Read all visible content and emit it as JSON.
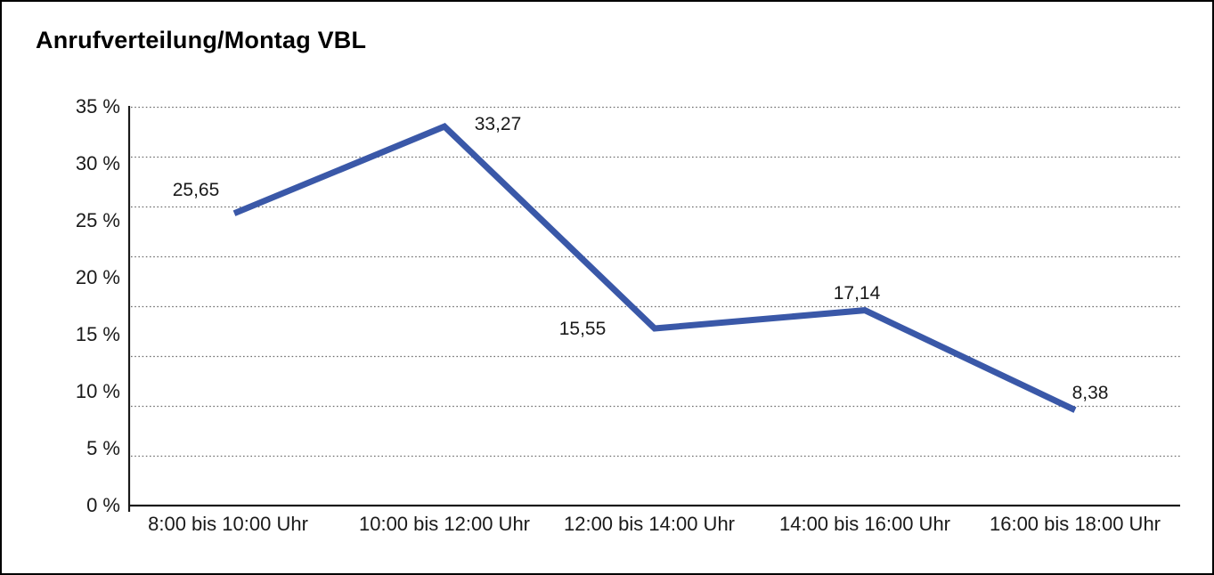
{
  "title": "Anrufverteilung/Montag VBL",
  "chart_data": {
    "type": "line",
    "title": "Anrufverteilung/Montag VBL",
    "categories": [
      "8:00 bis 10:00 Uhr",
      "10:00 bis 12:00 Uhr",
      "12:00 bis 14:00 Uhr",
      "14:00 bis 16:00 Uhr",
      "16:00 bis 18:00 Uhr"
    ],
    "values": [
      25.65,
      33.27,
      15.55,
      17.14,
      8.38
    ],
    "point_labels": [
      "25,65",
      "33,27",
      "15,55",
      "17,14",
      "8,38"
    ],
    "y_ticks": [
      "35 %",
      "30 %",
      "25 %",
      "20 %",
      "15 %",
      "10 %",
      "5 %",
      "0 %"
    ],
    "ylim": [
      0,
      35
    ],
    "xlabel": "",
    "ylabel": "",
    "unit": "%",
    "grid": "horizontal-dotted",
    "legend": "none",
    "line_color": "#3A58A8",
    "axis_color": "#1a1a1a"
  }
}
